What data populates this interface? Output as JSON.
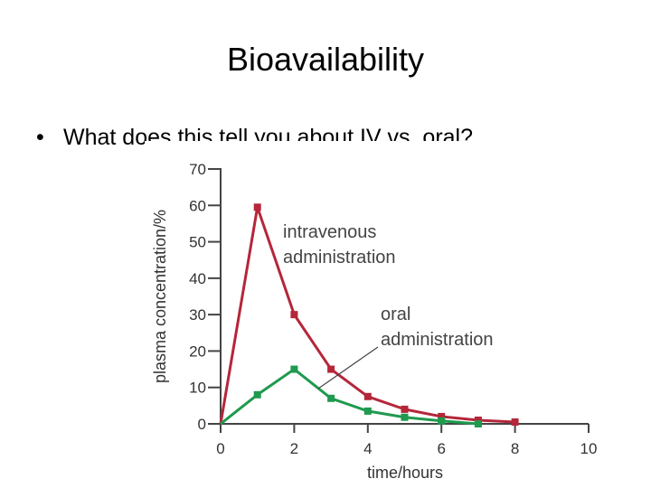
{
  "slide": {
    "title": "Bioavailability",
    "bullet_marker": "•",
    "bullet_text": "What does this tell you about IV vs. oral?"
  },
  "chart_data": {
    "type": "line",
    "title": "",
    "xlabel": "time/hours",
    "ylabel": "plasma concentration/%",
    "xlim": [
      0,
      10
    ],
    "ylim": [
      0,
      70
    ],
    "x_ticks": [
      0,
      2,
      4,
      6,
      8,
      10
    ],
    "y_ticks": [
      0,
      10,
      20,
      30,
      40,
      50,
      60,
      70
    ],
    "grid": false,
    "series": [
      {
        "name": "intravenous administration",
        "label_lines": [
          "intravenous",
          "administration"
        ],
        "color": "#b5263a",
        "x": [
          0,
          1,
          2,
          3,
          4,
          5,
          6,
          7,
          8
        ],
        "y": [
          0,
          59.5,
          30,
          15,
          7.5,
          4,
          2,
          1,
          0.5
        ]
      },
      {
        "name": "oral administration",
        "label_lines": [
          "oral",
          "administration"
        ],
        "color": "#1f9a4e",
        "x": [
          0,
          1,
          2,
          3,
          4,
          5,
          6,
          7
        ],
        "y": [
          0,
          8,
          15,
          7,
          3.5,
          1.8,
          0.8,
          0
        ]
      }
    ]
  }
}
